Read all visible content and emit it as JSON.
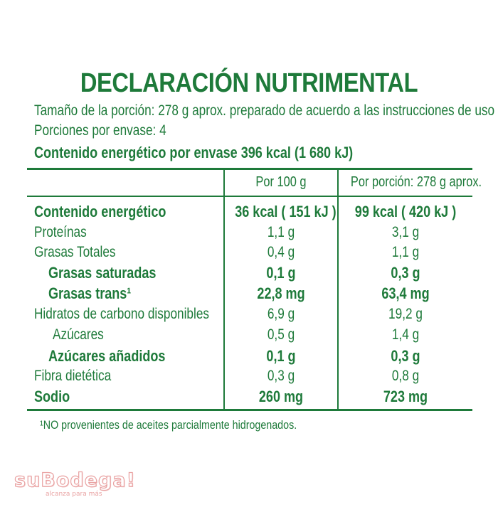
{
  "title": "DECLARACIÓN NUTRIMENTAL",
  "serving_size": "Tamaño de la porción: 278 g aprox. preparado de acuerdo a las instrucciones de uso",
  "servings_per_container": "Porciones por envase: 4",
  "energy_per_container": "Contenido energético por envase 396 kcal (1 680 kJ)",
  "table": {
    "columns": [
      "Por 100 g",
      "Por porción: 278 g aprox."
    ],
    "rows": [
      {
        "label": "Contenido energético",
        "per100": "36 kcal ( 151 kJ )",
        "perPortion": "99 kcal ( 420 kJ )"
      },
      {
        "label": "Proteínas",
        "per100": "1,1 g",
        "perPortion": "3,1 g"
      },
      {
        "label": "Grasas Totales",
        "per100": "0,4 g",
        "perPortion": "1,1 g"
      },
      {
        "label": "Grasas saturadas",
        "per100": "0,1 g",
        "perPortion": "0,3 g"
      },
      {
        "label": "Grasas trans¹",
        "per100": "22,8 mg",
        "perPortion": "63,4 mg"
      },
      {
        "label": "Hidratos de carbono disponibles",
        "per100": "6,9 g",
        "perPortion": "19,2 g"
      },
      {
        "label": "Azúcares",
        "per100": "0,5 g",
        "perPortion": "1,4 g"
      },
      {
        "label": "Azúcares añadidos",
        "per100": "0,1 g",
        "perPortion": "0,3 g"
      },
      {
        "label": "Fibra dietética",
        "per100": "0,3 g",
        "perPortion": "0,8 g"
      },
      {
        "label": "Sodio",
        "per100": "260 mg",
        "perPortion": "723 mg"
      }
    ]
  },
  "footnote": "¹NO provenientes de aceites parcialmente hidrogenados.",
  "watermark": {
    "brand": "suBodega!",
    "tagline": "alcanza para más"
  },
  "colors": {
    "text": "#1e7a3a",
    "watermark": "#e9a2a2"
  }
}
